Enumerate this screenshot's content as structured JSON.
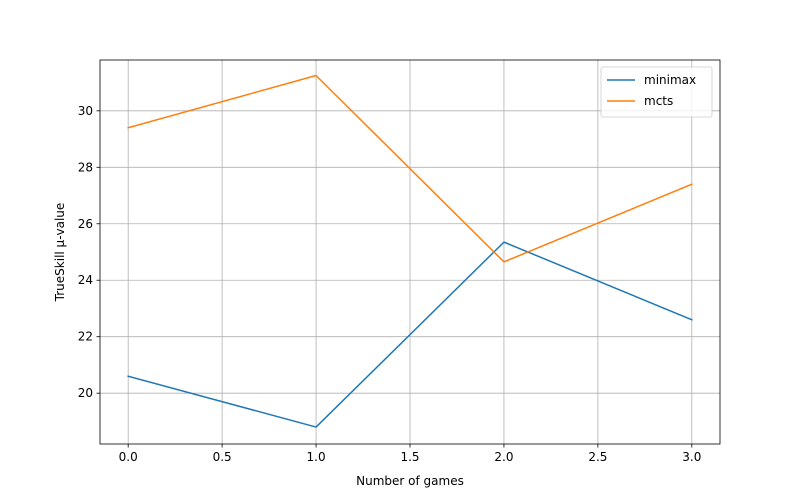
{
  "chart_data": {
    "type": "line",
    "title": "",
    "xlabel": "Number of games",
    "ylabel": "TrueSkill μ-value",
    "xlim": [
      -0.15,
      3.15
    ],
    "ylim": [
      18.2,
      31.8
    ],
    "xticks": [
      0.0,
      0.5,
      1.0,
      1.5,
      2.0,
      2.5,
      3.0
    ],
    "xtick_labels": [
      "0.0",
      "0.5",
      "1.0",
      "1.5",
      "2.0",
      "2.5",
      "3.0"
    ],
    "yticks": [
      20,
      22,
      24,
      26,
      28,
      30
    ],
    "ytick_labels": [
      "20",
      "22",
      "24",
      "26",
      "28",
      "30"
    ],
    "grid": true,
    "legend_position": "top-right",
    "x": [
      0,
      1,
      2,
      3
    ],
    "series": [
      {
        "name": "minimax",
        "values": [
          20.6,
          18.8,
          25.35,
          22.6
        ],
        "color": "#1f77b4"
      },
      {
        "name": "mcts",
        "values": [
          29.4,
          31.25,
          24.65,
          27.4
        ],
        "color": "#ff7f0e"
      }
    ]
  }
}
